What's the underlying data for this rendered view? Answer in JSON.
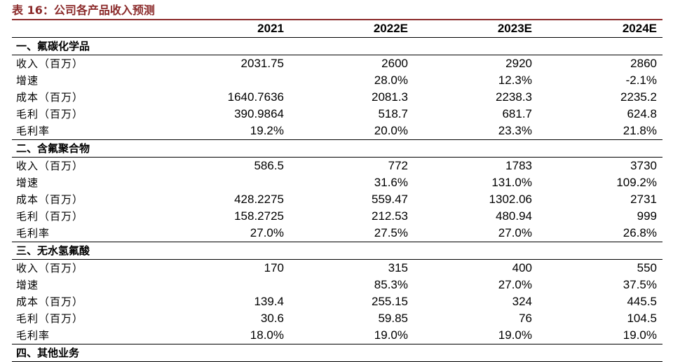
{
  "caption": "表 16：公司各产品收入预测",
  "headers": [
    "",
    "2021",
    "2022E",
    "2023E",
    "2024E"
  ],
  "sections": [
    {
      "title": "一、氟碳化学品",
      "rows": [
        {
          "label": "收入（百万）",
          "values": [
            "2031.75",
            "2600",
            "2920",
            "2860"
          ]
        },
        {
          "label": "增速",
          "values": [
            "",
            "28.0%",
            "12.3%",
            "-2.1%"
          ]
        },
        {
          "label": "成本（百万）",
          "values": [
            "1640.7636",
            "2081.3",
            "2238.3",
            "2235.2"
          ]
        },
        {
          "label": "毛利（百万）",
          "values": [
            "390.9864",
            "518.7",
            "681.7",
            "624.8"
          ]
        },
        {
          "label": "毛利率",
          "values": [
            "19.2%",
            "20.0%",
            "23.3%",
            "21.8%"
          ]
        }
      ]
    },
    {
      "title": "二、含氟聚合物",
      "rows": [
        {
          "label": "收入（百万）",
          "values": [
            "586.5",
            "772",
            "1783",
            "3730"
          ]
        },
        {
          "label": "增速",
          "values": [
            "",
            "31.6%",
            "131.0%",
            "109.2%"
          ]
        },
        {
          "label": "成本（百万）",
          "values": [
            "428.2275",
            "559.47",
            "1302.06",
            "2731"
          ]
        },
        {
          "label": "毛利（百万）",
          "values": [
            "158.2725",
            "212.53",
            "480.94",
            "999"
          ]
        },
        {
          "label": "毛利率",
          "values": [
            "27.0%",
            "27.5%",
            "27.0%",
            "26.8%"
          ]
        }
      ]
    },
    {
      "title": "三、无水氢氟酸",
      "rows": [
        {
          "label": "收入（百万）",
          "values": [
            "170",
            "315",
            "400",
            "550"
          ]
        },
        {
          "label": "增速",
          "values": [
            "",
            "85.3%",
            "27.0%",
            "37.5%"
          ]
        },
        {
          "label": "成本（百万）",
          "values": [
            "139.4",
            "255.15",
            "324",
            "445.5"
          ]
        },
        {
          "label": "毛利（百万）",
          "values": [
            "30.6",
            "59.85",
            "76",
            "104.5"
          ]
        },
        {
          "label": "毛利率",
          "values": [
            "18.0%",
            "19.0%",
            "19.0%",
            "19.0%"
          ]
        }
      ]
    },
    {
      "title": "四、其他业务",
      "rows": []
    }
  ]
}
